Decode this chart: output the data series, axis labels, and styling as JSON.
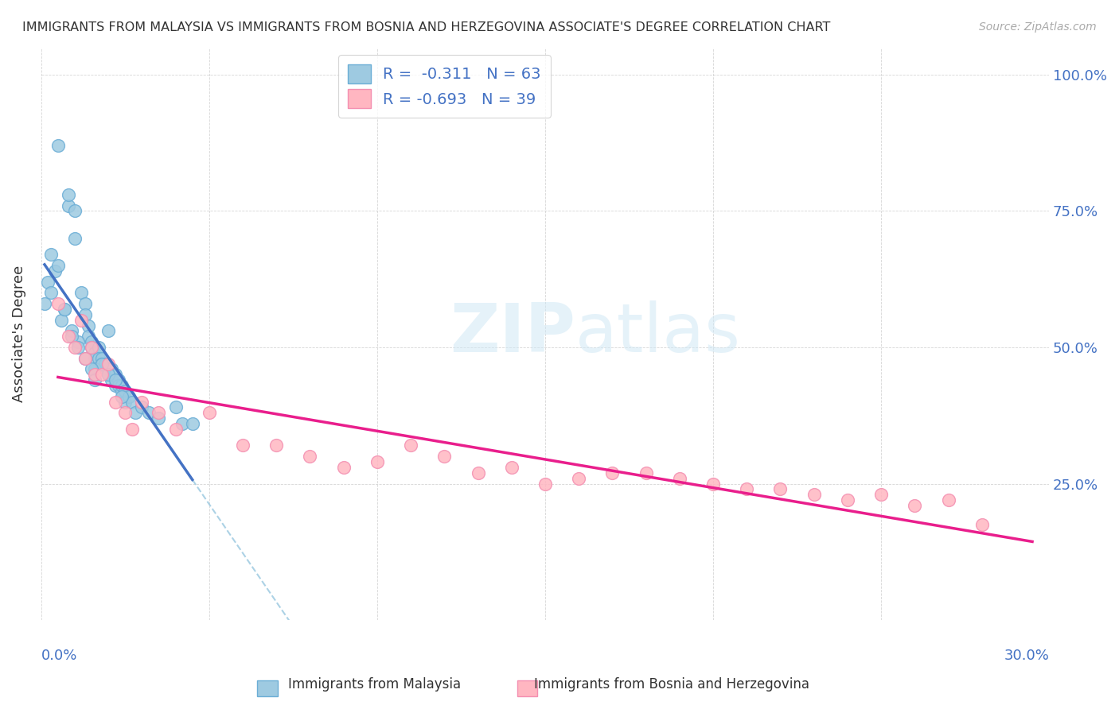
{
  "title": "IMMIGRANTS FROM MALAYSIA VS IMMIGRANTS FROM BOSNIA AND HERZEGOVINA ASSOCIATE'S DEGREE CORRELATION CHART",
  "source": "Source: ZipAtlas.com",
  "ylabel": "Associate's Degree",
  "legend_blue_label": "R =  -0.311   N = 63",
  "legend_pink_label": "R = -0.693   N = 39",
  "blue_marker_face": "#9ecae1",
  "blue_marker_edge": "#6baed6",
  "pink_marker_face": "#ffb6c1",
  "pink_marker_edge": "#f48fb1",
  "blue_line_color": "#4472c4",
  "pink_line_color": "#e91e8c",
  "dash_line_color": "#9ecae1",
  "xlim": [
    0.0,
    0.3
  ],
  "ylim": [
    0.0,
    1.05
  ],
  "blue_scatter_x": [
    0.005,
    0.008,
    0.008,
    0.01,
    0.01,
    0.012,
    0.013,
    0.013,
    0.014,
    0.014,
    0.015,
    0.015,
    0.016,
    0.016,
    0.017,
    0.017,
    0.018,
    0.018,
    0.019,
    0.019,
    0.02,
    0.02,
    0.021,
    0.021,
    0.022,
    0.022,
    0.023,
    0.023,
    0.024,
    0.024,
    0.025,
    0.025,
    0.026,
    0.027,
    0.028,
    0.03,
    0.032,
    0.035,
    0.04,
    0.042,
    0.001,
    0.002,
    0.003,
    0.004,
    0.006,
    0.007,
    0.009,
    0.011,
    0.016,
    0.018,
    0.02,
    0.022,
    0.024,
    0.045,
    0.003,
    0.005,
    0.007,
    0.011,
    0.013,
    0.015,
    0.009,
    0.016,
    0.02
  ],
  "blue_scatter_y": [
    0.87,
    0.76,
    0.78,
    0.75,
    0.7,
    0.6,
    0.58,
    0.56,
    0.54,
    0.52,
    0.51,
    0.5,
    0.49,
    0.48,
    0.5,
    0.48,
    0.48,
    0.47,
    0.46,
    0.47,
    0.46,
    0.45,
    0.46,
    0.44,
    0.43,
    0.45,
    0.44,
    0.43,
    0.42,
    0.43,
    0.42,
    0.4,
    0.41,
    0.4,
    0.38,
    0.39,
    0.38,
    0.37,
    0.39,
    0.36,
    0.58,
    0.62,
    0.6,
    0.64,
    0.55,
    0.57,
    0.53,
    0.51,
    0.46,
    0.47,
    0.45,
    0.44,
    0.41,
    0.36,
    0.67,
    0.65,
    0.57,
    0.5,
    0.48,
    0.46,
    0.52,
    0.44,
    0.53
  ],
  "pink_scatter_x": [
    0.005,
    0.008,
    0.01,
    0.012,
    0.013,
    0.015,
    0.016,
    0.018,
    0.02,
    0.022,
    0.025,
    0.027,
    0.03,
    0.035,
    0.04,
    0.05,
    0.06,
    0.07,
    0.08,
    0.09,
    0.1,
    0.11,
    0.12,
    0.13,
    0.14,
    0.15,
    0.16,
    0.17,
    0.18,
    0.19,
    0.2,
    0.21,
    0.22,
    0.23,
    0.24,
    0.25,
    0.26,
    0.27,
    0.28
  ],
  "pink_scatter_y": [
    0.58,
    0.52,
    0.5,
    0.55,
    0.48,
    0.5,
    0.45,
    0.45,
    0.47,
    0.4,
    0.38,
    0.35,
    0.4,
    0.38,
    0.35,
    0.38,
    0.32,
    0.32,
    0.3,
    0.28,
    0.29,
    0.32,
    0.3,
    0.27,
    0.28,
    0.25,
    0.26,
    0.27,
    0.27,
    0.26,
    0.25,
    0.24,
    0.24,
    0.23,
    0.22,
    0.23,
    0.21,
    0.22,
    0.175
  ]
}
